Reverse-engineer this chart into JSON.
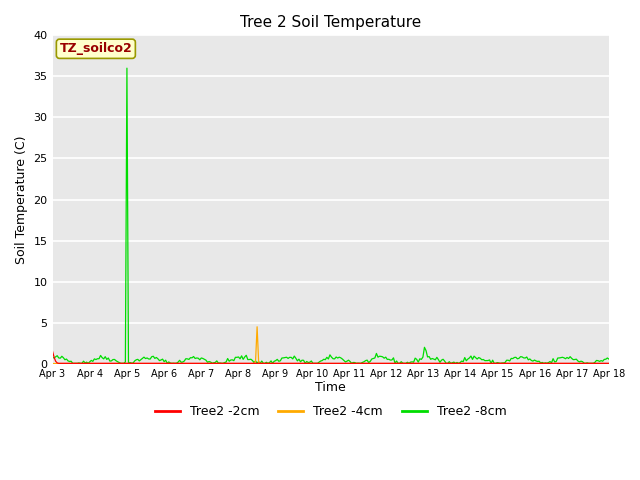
{
  "title": "Tree 2 Soil Temperature",
  "xlabel": "Time",
  "ylabel": "Soil Temperature (C)",
  "ylim": [
    0,
    40
  ],
  "yticks": [
    0,
    5,
    10,
    15,
    20,
    25,
    30,
    35,
    40
  ],
  "fig_bg_color": "#ffffff",
  "plot_bg_color": "#e8e8e8",
  "grid_color": "#ffffff",
  "annotation_text": "TZ_soilco2",
  "annotation_bg": "#ffffcc",
  "annotation_border": "#999900",
  "annotation_text_color": "#990000",
  "x_tick_labels": [
    "Apr 3",
    "Apr 4",
    "Apr 5",
    "Apr 6",
    "Apr 7",
    "Apr 8",
    "Apr 9",
    "Apr 10",
    "Apr 11",
    "Apr 12",
    "Apr 13",
    "Apr 14",
    "Apr 15",
    "Apr 16",
    "Apr 17",
    "Apr 18"
  ],
  "legend_labels": [
    "Tree2 -2cm",
    "Tree2 -4cm",
    "Tree2 -8cm"
  ],
  "legend_colors": [
    "#ff0000",
    "#ffaa00",
    "#00dd00"
  ],
  "spike_8cm_day": 2,
  "spike_8cm_val": 36.0,
  "bump_8cm_day": 10,
  "bump_8cm_val": 2.0,
  "spike_2cm_val": 1.5,
  "spike_4cm_day": 5.5,
  "spike_4cm_val": 4.5
}
